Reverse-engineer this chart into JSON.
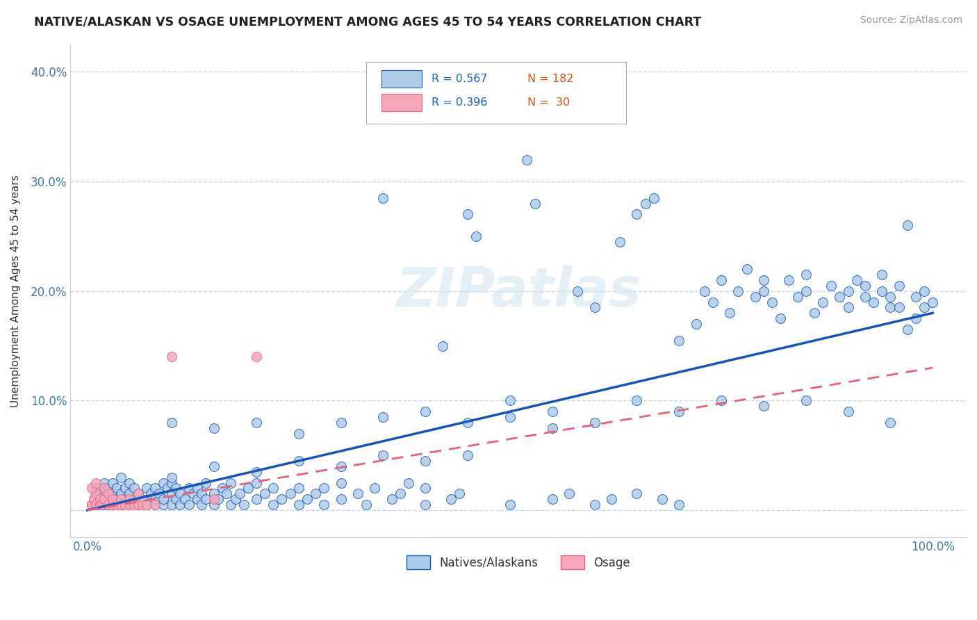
{
  "title": "NATIVE/ALASKAN VS OSAGE UNEMPLOYMENT AMONG AGES 45 TO 54 YEARS CORRELATION CHART",
  "source": "Source: ZipAtlas.com",
  "ylabel": "Unemployment Among Ages 45 to 54 years",
  "xlim": [
    -0.02,
    1.04
  ],
  "ylim": [
    -0.025,
    0.425
  ],
  "xticks": [
    0.0,
    0.1,
    0.2,
    0.3,
    0.4,
    0.5,
    0.6,
    0.7,
    0.8,
    0.9,
    1.0
  ],
  "xticklabels": [
    "0.0%",
    "",
    "",
    "",
    "",
    "",
    "",
    "",
    "",
    "",
    "100.0%"
  ],
  "yticks": [
    0.0,
    0.1,
    0.2,
    0.3,
    0.4
  ],
  "yticklabels": [
    "",
    "10.0%",
    "20.0%",
    "30.0%",
    "40.0%"
  ],
  "legend_r1": "R = 0.567",
  "legend_n1": "N = 182",
  "legend_r2": "R = 0.396",
  "legend_n2": "N =  30",
  "color_blue": "#aecce8",
  "color_pink": "#f5a8bb",
  "line_blue": "#1455b5",
  "line_pink": "#e8607a",
  "background_color": "#ffffff",
  "grid_color": "#c8d8e8",
  "watermark": "ZIPatlas",
  "blue_reg": [
    0.0,
    0.18
  ],
  "pink_reg": [
    0.0,
    0.13
  ],
  "blue_scatter": [
    [
      0.005,
      0.005
    ],
    [
      0.008,
      0.01
    ],
    [
      0.01,
      0.005
    ],
    [
      0.01,
      0.02
    ],
    [
      0.012,
      0.015
    ],
    [
      0.015,
      0.005
    ],
    [
      0.015,
      0.02
    ],
    [
      0.018,
      0.01
    ],
    [
      0.02,
      0.005
    ],
    [
      0.02,
      0.015
    ],
    [
      0.02,
      0.025
    ],
    [
      0.025,
      0.01
    ],
    [
      0.025,
      0.02
    ],
    [
      0.03,
      0.005
    ],
    [
      0.03,
      0.015
    ],
    [
      0.03,
      0.025
    ],
    [
      0.035,
      0.01
    ],
    [
      0.035,
      0.02
    ],
    [
      0.04,
      0.005
    ],
    [
      0.04,
      0.015
    ],
    [
      0.04,
      0.03
    ],
    [
      0.045,
      0.01
    ],
    [
      0.045,
      0.02
    ],
    [
      0.05,
      0.005
    ],
    [
      0.05,
      0.015
    ],
    [
      0.05,
      0.025
    ],
    [
      0.055,
      0.01
    ],
    [
      0.055,
      0.02
    ],
    [
      0.06,
      0.005
    ],
    [
      0.06,
      0.015
    ],
    [
      0.065,
      0.01
    ],
    [
      0.07,
      0.005
    ],
    [
      0.07,
      0.02
    ],
    [
      0.075,
      0.015
    ],
    [
      0.08,
      0.005
    ],
    [
      0.08,
      0.01
    ],
    [
      0.08,
      0.02
    ],
    [
      0.085,
      0.015
    ],
    [
      0.09,
      0.005
    ],
    [
      0.09,
      0.01
    ],
    [
      0.09,
      0.025
    ],
    [
      0.095,
      0.02
    ],
    [
      0.1,
      0.005
    ],
    [
      0.1,
      0.015
    ],
    [
      0.1,
      0.025
    ],
    [
      0.105,
      0.01
    ],
    [
      0.105,
      0.02
    ],
    [
      0.11,
      0.005
    ],
    [
      0.11,
      0.015
    ],
    [
      0.115,
      0.01
    ],
    [
      0.12,
      0.005
    ],
    [
      0.12,
      0.02
    ],
    [
      0.125,
      0.015
    ],
    [
      0.13,
      0.01
    ],
    [
      0.13,
      0.02
    ],
    [
      0.135,
      0.005
    ],
    [
      0.135,
      0.015
    ],
    [
      0.14,
      0.01
    ],
    [
      0.14,
      0.025
    ],
    [
      0.15,
      0.005
    ],
    [
      0.15,
      0.015
    ],
    [
      0.155,
      0.01
    ],
    [
      0.16,
      0.02
    ],
    [
      0.165,
      0.015
    ],
    [
      0.17,
      0.005
    ],
    [
      0.17,
      0.025
    ],
    [
      0.175,
      0.01
    ],
    [
      0.18,
      0.015
    ],
    [
      0.185,
      0.005
    ],
    [
      0.19,
      0.02
    ],
    [
      0.2,
      0.01
    ],
    [
      0.2,
      0.025
    ],
    [
      0.21,
      0.015
    ],
    [
      0.22,
      0.005
    ],
    [
      0.22,
      0.02
    ],
    [
      0.23,
      0.01
    ],
    [
      0.24,
      0.015
    ],
    [
      0.25,
      0.005
    ],
    [
      0.25,
      0.02
    ],
    [
      0.26,
      0.01
    ],
    [
      0.27,
      0.015
    ],
    [
      0.28,
      0.005
    ],
    [
      0.28,
      0.02
    ],
    [
      0.3,
      0.01
    ],
    [
      0.3,
      0.025
    ],
    [
      0.32,
      0.015
    ],
    [
      0.33,
      0.005
    ],
    [
      0.34,
      0.02
    ],
    [
      0.35,
      0.285
    ],
    [
      0.36,
      0.01
    ],
    [
      0.37,
      0.015
    ],
    [
      0.38,
      0.025
    ],
    [
      0.4,
      0.005
    ],
    [
      0.4,
      0.02
    ],
    [
      0.42,
      0.15
    ],
    [
      0.43,
      0.01
    ],
    [
      0.44,
      0.015
    ],
    [
      0.45,
      0.27
    ],
    [
      0.46,
      0.25
    ],
    [
      0.5,
      0.005
    ],
    [
      0.52,
      0.32
    ],
    [
      0.53,
      0.28
    ],
    [
      0.55,
      0.01
    ],
    [
      0.57,
      0.015
    ],
    [
      0.58,
      0.2
    ],
    [
      0.6,
      0.005
    ],
    [
      0.6,
      0.185
    ],
    [
      0.62,
      0.01
    ],
    [
      0.63,
      0.245
    ],
    [
      0.65,
      0.015
    ],
    [
      0.65,
      0.27
    ],
    [
      0.66,
      0.28
    ],
    [
      0.67,
      0.285
    ],
    [
      0.68,
      0.01
    ],
    [
      0.7,
      0.005
    ],
    [
      0.7,
      0.155
    ],
    [
      0.72,
      0.17
    ],
    [
      0.73,
      0.2
    ],
    [
      0.74,
      0.19
    ],
    [
      0.75,
      0.21
    ],
    [
      0.76,
      0.18
    ],
    [
      0.77,
      0.2
    ],
    [
      0.78,
      0.22
    ],
    [
      0.79,
      0.195
    ],
    [
      0.8,
      0.2
    ],
    [
      0.8,
      0.21
    ],
    [
      0.81,
      0.19
    ],
    [
      0.82,
      0.175
    ],
    [
      0.83,
      0.21
    ],
    [
      0.84,
      0.195
    ],
    [
      0.85,
      0.2
    ],
    [
      0.85,
      0.215
    ],
    [
      0.86,
      0.18
    ],
    [
      0.87,
      0.19
    ],
    [
      0.88,
      0.205
    ],
    [
      0.89,
      0.195
    ],
    [
      0.9,
      0.185
    ],
    [
      0.9,
      0.2
    ],
    [
      0.91,
      0.21
    ],
    [
      0.92,
      0.195
    ],
    [
      0.92,
      0.205
    ],
    [
      0.93,
      0.19
    ],
    [
      0.94,
      0.2
    ],
    [
      0.94,
      0.215
    ],
    [
      0.95,
      0.185
    ],
    [
      0.95,
      0.195
    ],
    [
      0.96,
      0.185
    ],
    [
      0.96,
      0.205
    ],
    [
      0.97,
      0.165
    ],
    [
      0.97,
      0.26
    ],
    [
      0.98,
      0.175
    ],
    [
      0.98,
      0.195
    ],
    [
      0.99,
      0.185
    ],
    [
      0.99,
      0.2
    ],
    [
      1.0,
      0.19
    ],
    [
      0.5,
      0.1
    ],
    [
      0.55,
      0.09
    ],
    [
      0.6,
      0.08
    ],
    [
      0.65,
      0.1
    ],
    [
      0.7,
      0.09
    ],
    [
      0.75,
      0.1
    ],
    [
      0.8,
      0.095
    ],
    [
      0.85,
      0.1
    ],
    [
      0.9,
      0.09
    ],
    [
      0.95,
      0.08
    ],
    [
      0.1,
      0.08
    ],
    [
      0.15,
      0.075
    ],
    [
      0.2,
      0.08
    ],
    [
      0.25,
      0.07
    ],
    [
      0.3,
      0.08
    ],
    [
      0.35,
      0.085
    ],
    [
      0.4,
      0.09
    ],
    [
      0.45,
      0.08
    ],
    [
      0.5,
      0.085
    ],
    [
      0.55,
      0.075
    ],
    [
      0.1,
      0.03
    ],
    [
      0.15,
      0.04
    ],
    [
      0.2,
      0.035
    ],
    [
      0.25,
      0.045
    ],
    [
      0.3,
      0.04
    ],
    [
      0.35,
      0.05
    ],
    [
      0.4,
      0.045
    ],
    [
      0.45,
      0.05
    ]
  ],
  "pink_scatter": [
    [
      0.005,
      0.005
    ],
    [
      0.008,
      0.01
    ],
    [
      0.01,
      0.005
    ],
    [
      0.01,
      0.015
    ],
    [
      0.015,
      0.005
    ],
    [
      0.015,
      0.01
    ],
    [
      0.018,
      0.005
    ],
    [
      0.02,
      0.01
    ],
    [
      0.02,
      0.02
    ],
    [
      0.025,
      0.005
    ],
    [
      0.025,
      0.015
    ],
    [
      0.03,
      0.005
    ],
    [
      0.03,
      0.01
    ],
    [
      0.035,
      0.005
    ],
    [
      0.04,
      0.005
    ],
    [
      0.04,
      0.01
    ],
    [
      0.045,
      0.005
    ],
    [
      0.05,
      0.005
    ],
    [
      0.05,
      0.01
    ],
    [
      0.055,
      0.005
    ],
    [
      0.06,
      0.005
    ],
    [
      0.06,
      0.015
    ],
    [
      0.065,
      0.005
    ],
    [
      0.07,
      0.005
    ],
    [
      0.08,
      0.005
    ],
    [
      0.1,
      0.14
    ],
    [
      0.15,
      0.01
    ],
    [
      0.2,
      0.14
    ],
    [
      0.005,
      0.02
    ],
    [
      0.01,
      0.025
    ]
  ]
}
